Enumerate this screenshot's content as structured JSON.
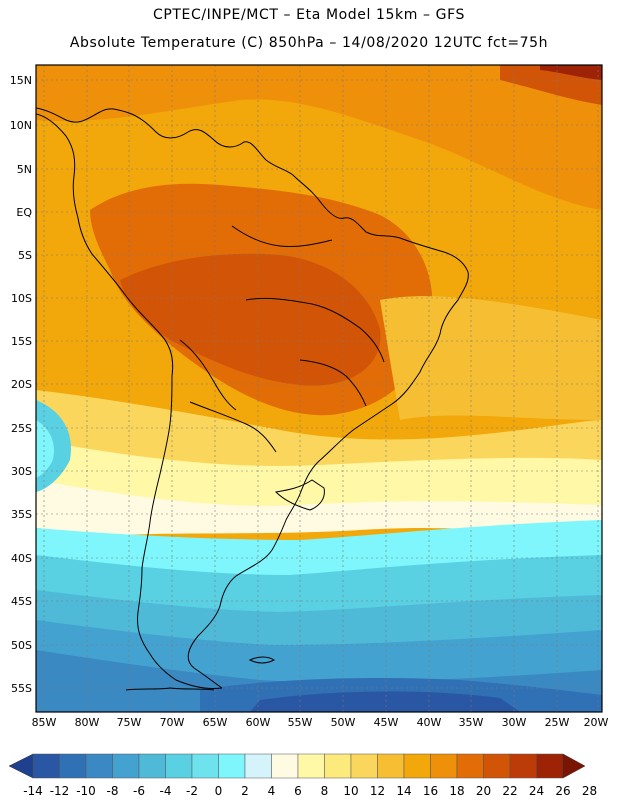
{
  "header": {
    "line1": "CPTEC/INPE/MCT –  Eta Model 15km – GFS",
    "line2": "Absolute Temperature (C) 850hPa – 14/08/2020 12UTC fct=75h"
  },
  "map": {
    "lat_labels": [
      "15N",
      "10N",
      "5N",
      "EQ",
      "5S",
      "10S",
      "15S",
      "20S",
      "25S",
      "30S",
      "35S",
      "40S",
      "45S",
      "50S",
      "55S"
    ],
    "lon_labels": [
      "85W",
      "80W",
      "75W",
      "70W",
      "65W",
      "60W",
      "55W",
      "50W",
      "45W",
      "40W",
      "35W",
      "30W",
      "25W",
      "20W"
    ]
  },
  "colorbar": {
    "labels": [
      "-14",
      "-12",
      "-10",
      "-8",
      "-6",
      "-4",
      "-2",
      "0",
      "2",
      "4",
      "6",
      "8",
      "10",
      "12",
      "14",
      "16",
      "18",
      "20",
      "22",
      "24",
      "26",
      "28"
    ],
    "colors": [
      "#1f3f8f",
      "#2a57a4",
      "#3070b5",
      "#3a89c3",
      "#44a2d0",
      "#4ebad8",
      "#5ad0e3",
      "#6ee3ee",
      "#7ef6fb",
      "#d5f3fb",
      "#fffbe2",
      "#fff8a6",
      "#fdea7d",
      "#fbd65c",
      "#f6bf33",
      "#f2a70a",
      "#ef900a",
      "#e26d07",
      "#d25406",
      "#bd3b07",
      "#9e2306",
      "#7a1504"
    ]
  }
}
